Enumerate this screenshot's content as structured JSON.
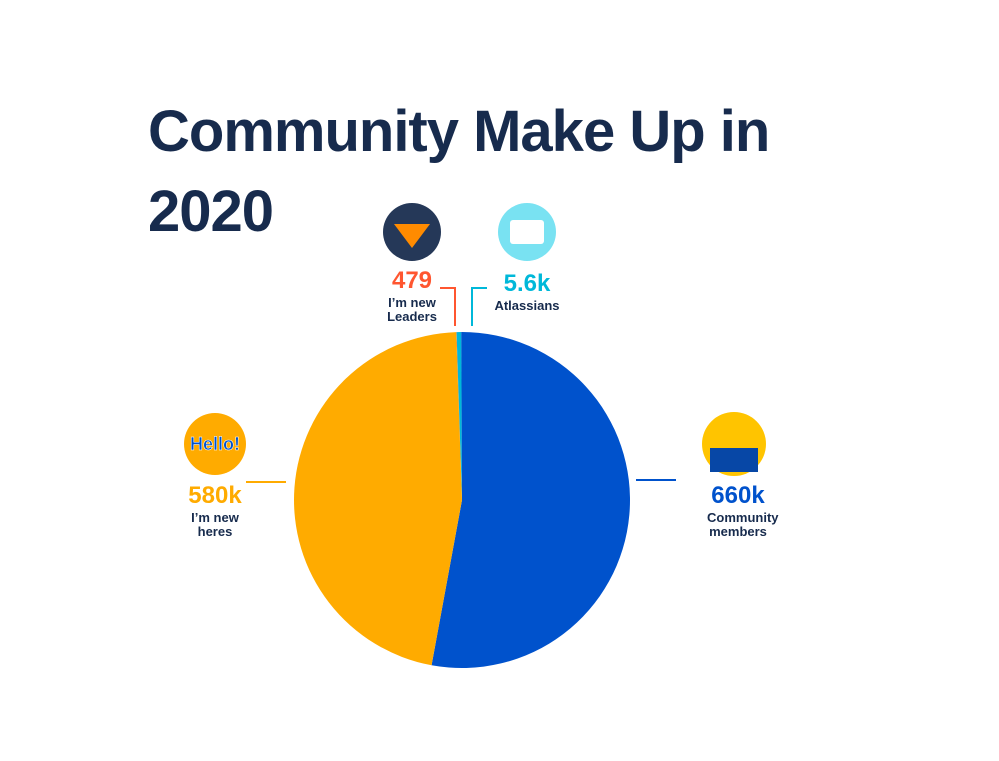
{
  "chart_data": {
    "type": "pie",
    "title": "Community Make Up in 2020",
    "categories": [
      "I’m new Leaders",
      "Atlassians",
      "Community members",
      "I’m new heres"
    ],
    "values": [
      479,
      5600,
      660000,
      580000
    ],
    "value_labels": [
      "479",
      "5.6k",
      "660k",
      "580k"
    ],
    "colors": [
      "#FF5630",
      "#00B8D9",
      "#0052CC",
      "#FFAB00"
    ],
    "icon_text": "Hello!"
  }
}
